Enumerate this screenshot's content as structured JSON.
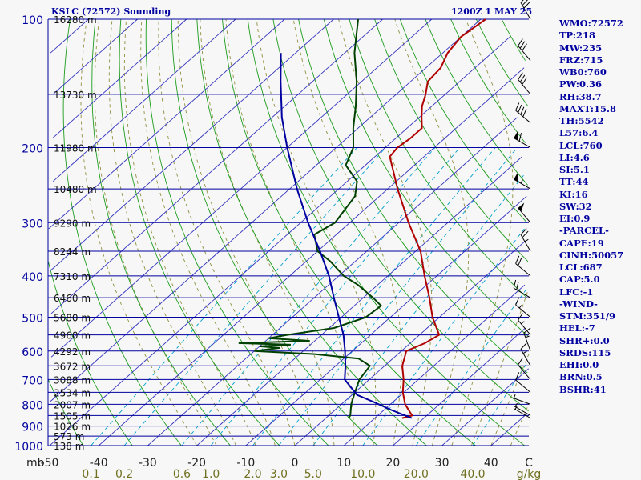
{
  "chart_data": {
    "type": "skew-t",
    "title_left": "KSLC (72572) Sounding",
    "title_right": "1200Z  1 MAY 25",
    "y_axis": {
      "type": "log-pressure",
      "pressure_range": [
        1000,
        100
      ],
      "pressure_labels": [
        100,
        200,
        300,
        400,
        500,
        600,
        700,
        800,
        900,
        1000
      ],
      "axis_unit": "mb"
    },
    "x_axis": {
      "temperature_labels": [
        -50,
        -40,
        -30,
        -20,
        -10,
        0,
        10,
        20,
        30,
        40
      ],
      "temperature_unit": "C",
      "mixing_ratio_labels": [
        "0.1",
        "0.2",
        "0.6",
        "1.0",
        "2.0",
        "3.0",
        "5.0",
        "10.0",
        "20.0",
        "40.0"
      ],
      "mixing_ratio_unit": "g/kg"
    },
    "height_levels": [
      {
        "p": 100,
        "label": "16280 m"
      },
      {
        "p": 150,
        "label": "13730 m"
      },
      {
        "p": 200,
        "label": "11980 m"
      },
      {
        "p": 250,
        "label": "10480 m"
      },
      {
        "p": 300,
        "label": "9290 m"
      },
      {
        "p": 350,
        "label": "8244 m"
      },
      {
        "p": 400,
        "label": "7310 m"
      },
      {
        "p": 450,
        "label": "6460 m"
      },
      {
        "p": 500,
        "label": "5680 m"
      },
      {
        "p": 550,
        "label": "4960 m"
      },
      {
        "p": 600,
        "label": "4292 m"
      },
      {
        "p": 650,
        "label": "3672 m"
      },
      {
        "p": 700,
        "label": "3088 m"
      },
      {
        "p": 750,
        "label": "2534 m"
      },
      {
        "p": 800,
        "label": "2007 m"
      },
      {
        "p": 850,
        "label": "1505 m"
      },
      {
        "p": 900,
        "label": "1026 m"
      },
      {
        "p": 950,
        "label": "573 m"
      },
      {
        "p": 1000,
        "label": "138 m"
      }
    ],
    "series": [
      {
        "name": "Temperature",
        "color": "#b00000",
        "points": [
          [
            862,
            15.6
          ],
          [
            850,
            17.0
          ],
          [
            800,
            13.0
          ],
          [
            750,
            9.8
          ],
          [
            700,
            7.0
          ],
          [
            650,
            3.6
          ],
          [
            600,
            1.0
          ],
          [
            575,
            3.0
          ],
          [
            550,
            4.0
          ],
          [
            500,
            -1.4
          ],
          [
            450,
            -6.5
          ],
          [
            400,
            -12.5
          ],
          [
            350,
            -19.0
          ],
          [
            300,
            -28.0
          ],
          [
            250,
            -38.0
          ],
          [
            210,
            -47.0
          ],
          [
            200,
            -47.5
          ],
          [
            190,
            -47.0
          ],
          [
            180,
            -47.0
          ],
          [
            170,
            -49.5
          ],
          [
            160,
            -52.0
          ],
          [
            150,
            -54.0
          ],
          [
            140,
            -56.5
          ],
          [
            130,
            -57.0
          ],
          [
            120,
            -59.0
          ],
          [
            110,
            -60.0
          ],
          [
            100,
            -59.0
          ]
        ]
      },
      {
        "name": "Dew point",
        "color": "#004000",
        "points": [
          [
            862,
            4.6
          ],
          [
            850,
            4.4
          ],
          [
            800,
            2.0
          ],
          [
            750,
            0.0
          ],
          [
            700,
            -2.0
          ],
          [
            650,
            -3.0
          ],
          [
            625,
            -7.0
          ],
          [
            610,
            -17.0
          ],
          [
            600,
            -30.0
          ],
          [
            590,
            -25.5
          ],
          [
            585,
            -30.0
          ],
          [
            580,
            -24.0
          ],
          [
            575,
            -35.0
          ],
          [
            568,
            -21.0
          ],
          [
            560,
            -30.0
          ],
          [
            550,
            -27.0
          ],
          [
            530,
            -19.0
          ],
          [
            500,
            -15.0
          ],
          [
            470,
            -14.5
          ],
          [
            450,
            -18.0
          ],
          [
            420,
            -24.0
          ],
          [
            400,
            -29.0
          ],
          [
            370,
            -35.0
          ],
          [
            350,
            -40.0
          ],
          [
            320,
            -44.5
          ],
          [
            300,
            -43.0
          ],
          [
            260,
            -45.0
          ],
          [
            240,
            -48.0
          ],
          [
            220,
            -54.0
          ],
          [
            200,
            -56.5
          ],
          [
            180,
            -61.0
          ],
          [
            160,
            -65.5
          ],
          [
            140,
            -71.0
          ],
          [
            120,
            -78.0
          ],
          [
            100,
            -85.0
          ]
        ]
      },
      {
        "name": "Parcel",
        "color": "#0000a0",
        "points": [
          [
            862,
            17.5
          ],
          [
            825,
            11.5
          ],
          [
            790,
            6.0
          ],
          [
            760,
            1.0
          ],
          [
            700,
            -5.0
          ],
          [
            650,
            -8.0
          ],
          [
            600,
            -11.5
          ],
          [
            550,
            -15.5
          ],
          [
            500,
            -20.5
          ],
          [
            450,
            -26.0
          ],
          [
            400,
            -32.0
          ],
          [
            350,
            -39.5
          ],
          [
            300,
            -48.5
          ],
          [
            250,
            -58.5
          ],
          [
            200,
            -70.0
          ],
          [
            170,
            -78.0
          ],
          [
            140,
            -86.5
          ],
          [
            120,
            -93.0
          ]
        ]
      }
    ],
    "wind_barbs": [
      {
        "p": 862,
        "dir": 300,
        "kt": 5
      },
      {
        "p": 850,
        "dir": 300,
        "kt": 5
      },
      {
        "p": 800,
        "dir": 290,
        "kt": 5
      },
      {
        "p": 750,
        "dir": 310,
        "kt": 10
      },
      {
        "p": 700,
        "dir": 320,
        "kt": 10
      },
      {
        "p": 650,
        "dir": 330,
        "kt": 15
      },
      {
        "p": 600,
        "dir": 340,
        "kt": 15
      },
      {
        "p": 550,
        "dir": 320,
        "kt": 15
      },
      {
        "p": 500,
        "dir": 310,
        "kt": 15
      },
      {
        "p": 450,
        "dir": 300,
        "kt": 20
      },
      {
        "p": 400,
        "dir": 310,
        "kt": 20
      },
      {
        "p": 350,
        "dir": 330,
        "kt": 25
      },
      {
        "p": 300,
        "dir": 320,
        "kt": 50
      },
      {
        "p": 250,
        "dir": 300,
        "kt": 55
      },
      {
        "p": 200,
        "dir": 300,
        "kt": 60
      },
      {
        "p": 175,
        "dir": 310,
        "kt": 40
      },
      {
        "p": 150,
        "dir": 320,
        "kt": 30
      },
      {
        "p": 125,
        "dir": 320,
        "kt": 30
      },
      {
        "p": 100,
        "dir": 330,
        "kt": 30
      }
    ]
  },
  "indices": [
    "WMO:72572",
    "TP:218",
    "MW:235",
    "FRZ:715",
    "WB0:760",
    "PW:0.36",
    "RH:38.7",
    "MAXT:15.8",
    "TH:5542",
    "L57:6.4",
    "LCL:760",
    "LI:4.6",
    "SI:5.1",
    "TT:44",
    "KI:16",
    "SW:32",
    "EI:0.9",
    "-PARCEL-",
    "CAPE:19",
    "CINH:50057",
    "LCL:687",
    "CAP:5.0",
    "LFC:-1",
    "-WIND-",
    "STM:351/9",
    "HEL:-7",
    "SHR+:0.0",
    "SRDS:115",
    "EHI:0.0",
    "BRN:0.5",
    "BSHR:41"
  ],
  "colors": {
    "isobar": "#0000a0",
    "isotherm": "#3030c0",
    "dry_adiabat": "#1c9c1c",
    "moist_adiabat": "#909040",
    "mixing_ratio": "#00a0d0",
    "label_text": "#0000a0",
    "mixing_label_text": "#707020"
  }
}
